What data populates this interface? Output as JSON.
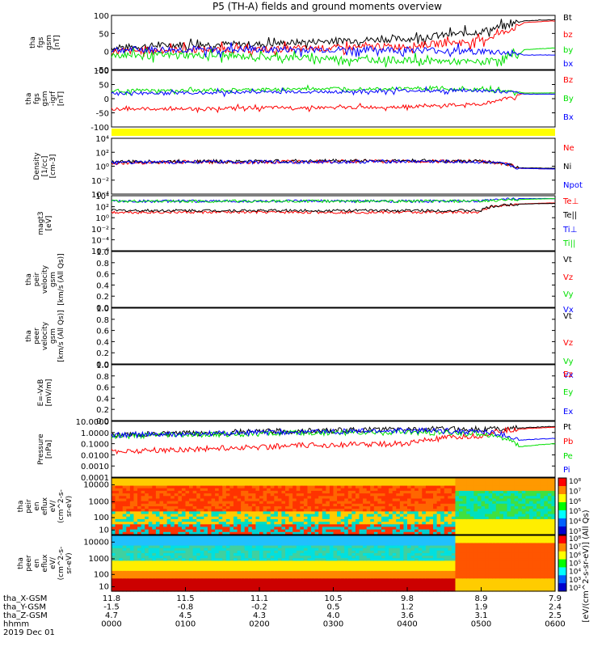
{
  "title": "P5 (TH-A) fields and ground moments overview",
  "colors": {
    "black": "#000000",
    "red": "#ff0000",
    "green": "#00e000",
    "blue": "#0000ff",
    "yellow": "#ffff00"
  },
  "chart_data": [
    {
      "type": "line",
      "panel": "fgs_gsm",
      "ylabel": [
        "tha",
        "fgs",
        "gsm",
        "[nT]"
      ],
      "ylim": [
        -50,
        100
      ],
      "yticks": [
        "100",
        "50",
        "0",
        "-50"
      ],
      "series": [
        {
          "name": "Bt",
          "color": "black",
          "x": [
            0,
            60,
            120,
            180,
            240,
            300,
            330,
            335,
            360
          ],
          "y": [
            10,
            20,
            20,
            30,
            35,
            55,
            80,
            85,
            88
          ]
        },
        {
          "name": "bz",
          "color": "red",
          "x": [
            0,
            60,
            120,
            180,
            240,
            300,
            330,
            335,
            360
          ],
          "y": [
            0,
            5,
            5,
            10,
            15,
            30,
            70,
            80,
            85
          ]
        },
        {
          "name": "by",
          "color": "green",
          "x": [
            0,
            60,
            120,
            180,
            240,
            300,
            330,
            335,
            360
          ],
          "y": [
            -10,
            -10,
            -15,
            -20,
            -25,
            -30,
            -10,
            5,
            10
          ]
        },
        {
          "name": "bx",
          "color": "blue",
          "x": [
            0,
            60,
            120,
            180,
            240,
            300,
            330,
            335,
            360
          ],
          "y": [
            5,
            5,
            5,
            5,
            5,
            0,
            -5,
            -10,
            -10
          ]
        }
      ]
    },
    {
      "type": "line",
      "panel": "fgs_gsm_b0",
      "ylabel": [
        "tha",
        "fgs",
        "gsm",
        "-igrf",
        "[nT]"
      ],
      "ylim": [
        -150,
        100
      ],
      "yticks": [
        "100",
        "50",
        "0",
        "-50",
        "-100"
      ],
      "series": [
        {
          "name": "Bz",
          "color": "red",
          "x": [
            0,
            60,
            120,
            180,
            240,
            300,
            330,
            335,
            360
          ],
          "y": [
            -70,
            -70,
            -65,
            -65,
            -60,
            -50,
            -10,
            0,
            0
          ]
        },
        {
          "name": "By",
          "color": "green",
          "x": [
            0,
            60,
            120,
            180,
            240,
            300,
            330,
            335,
            360
          ],
          "y": [
            10,
            10,
            15,
            20,
            20,
            15,
            5,
            0,
            0
          ]
        },
        {
          "name": "Bx",
          "color": "blue",
          "x": [
            0,
            60,
            120,
            180,
            240,
            300,
            330,
            335,
            360
          ],
          "y": [
            0,
            0,
            5,
            5,
            10,
            10,
            0,
            -5,
            -5
          ]
        }
      ]
    },
    {
      "type": "line",
      "panel": "density",
      "yscale": "log",
      "ylabel": [
        "Density",
        "[1/cc]",
        "[cm-3]"
      ],
      "ylim": [
        0.0001,
        10000
      ],
      "yticks": [
        "10⁴",
        "10²",
        "10⁰",
        "10⁻²",
        "10⁻⁴"
      ],
      "series": [
        {
          "name": "Ne",
          "color": "red",
          "x": [
            0,
            60,
            120,
            180,
            240,
            300,
            330,
            360
          ],
          "y": [
            3,
            4,
            4,
            5,
            5,
            5,
            0.5,
            0.4
          ]
        },
        {
          "name": "Ni",
          "color": "black",
          "x": [
            0,
            60,
            120,
            180,
            240,
            300,
            330,
            360
          ],
          "y": [
            4,
            5,
            5,
            6,
            6,
            5,
            0.6,
            0.5
          ]
        },
        {
          "name": "Npot",
          "color": "blue",
          "x": [
            0,
            60,
            120,
            180,
            240,
            300,
            330,
            360
          ],
          "y": [
            3,
            4,
            4,
            4,
            5,
            4,
            0.5,
            0.4
          ]
        }
      ]
    },
    {
      "type": "line",
      "panel": "temperature",
      "yscale": "log",
      "ylabel": [
        "magt3",
        "[eV]"
      ],
      "ylim": [
        1e-06,
        10000
      ],
      "yticks": [
        "10⁴",
        "10²",
        "10⁰",
        "10⁻²",
        "10⁻⁴",
        "10⁻⁶"
      ],
      "series": [
        {
          "name": "Te⊥",
          "color": "red",
          "x": [
            0,
            60,
            120,
            180,
            240,
            300,
            330,
            360
          ],
          "y": [
            10,
            10,
            10,
            10,
            10,
            10,
            300,
            500
          ]
        },
        {
          "name": "Te||",
          "color": "black",
          "x": [
            0,
            60,
            120,
            180,
            240,
            300,
            330,
            360
          ],
          "y": [
            20,
            20,
            20,
            20,
            20,
            20,
            300,
            400
          ]
        },
        {
          "name": "Ti⊥",
          "color": "blue",
          "x": [
            0,
            60,
            120,
            180,
            240,
            300,
            330,
            360
          ],
          "y": [
            1000,
            1000,
            1000,
            1000,
            1000,
            1000,
            3000,
            3000
          ]
        },
        {
          "name": "Ti||",
          "color": "green",
          "x": [
            0,
            60,
            120,
            180,
            240,
            300,
            330,
            360
          ],
          "y": [
            1000,
            1000,
            1000,
            1000,
            1000,
            1000,
            2000,
            3000
          ]
        }
      ]
    },
    {
      "type": "line",
      "panel": "peir_velocity",
      "ylabel": [
        "tha",
        "peir",
        "velocity",
        "gsm",
        "[km/s (All Qs)]"
      ],
      "ylim": [
        0,
        1
      ],
      "yticks": [
        "1.0",
        "0.8",
        "0.6",
        "0.4",
        "0.2",
        "0.0"
      ],
      "legend": [
        "Vt",
        "Vz",
        "Vy",
        "Vx"
      ]
    },
    {
      "type": "line",
      "panel": "peer_velocity",
      "ylabel": [
        "tha",
        "peer",
        "velocity",
        "gsm",
        "[km/s (All Qs)]"
      ],
      "ylim": [
        0,
        1
      ],
      "yticks": [
        "1.0",
        "0.8",
        "0.6",
        "0.4",
        "0.2",
        "0.0"
      ],
      "legend": [
        "Vt",
        "Vz",
        "Vy",
        "Vx"
      ]
    },
    {
      "type": "line",
      "panel": "e_field",
      "ylabel": [
        "E=-VxB",
        "[mV/m]"
      ],
      "ylim": [
        0,
        1
      ],
      "yticks": [
        "1.0",
        "0.8",
        "0.6",
        "0.4",
        "0.2",
        "0.0"
      ],
      "legend": [
        "Ez",
        "Ey",
        "Ex"
      ]
    },
    {
      "type": "line",
      "panel": "pressure",
      "yscale": "log",
      "ylabel": [
        "Pressure",
        "[nPa]"
      ],
      "ylim": [
        0.0001,
        10
      ],
      "yticks": [
        "10.0000",
        "1.0000",
        "0.1000",
        "0.0100",
        "0.0010",
        "0.0001"
      ],
      "series": [
        {
          "name": "Pt",
          "color": "black",
          "x": [
            0,
            60,
            120,
            180,
            240,
            300,
            330,
            360
          ],
          "y": [
            0.6,
            0.8,
            1.2,
            1.5,
            2,
            2,
            2.5,
            3.5
          ]
        },
        {
          "name": "Pb",
          "color": "red",
          "x": [
            0,
            60,
            120,
            180,
            240,
            300,
            330,
            360
          ],
          "y": [
            0.02,
            0.03,
            0.05,
            0.08,
            0.1,
            0.5,
            2,
            3
          ]
        },
        {
          "name": "Pe",
          "color": "green",
          "x": [
            0,
            60,
            120,
            180,
            240,
            300,
            330,
            360
          ],
          "y": [
            0.5,
            0.6,
            0.8,
            1,
            1,
            0.8,
            0.05,
            0.1
          ]
        },
        {
          "name": "Pi",
          "color": "blue",
          "x": [
            0,
            60,
            120,
            180,
            240,
            300,
            330,
            360
          ],
          "y": [
            0.6,
            0.7,
            1,
            1.2,
            1.5,
            1.2,
            0.2,
            0.3
          ]
        }
      ]
    },
    {
      "type": "heatmap",
      "panel": "peir_en_eflux",
      "ylabel": [
        "tha",
        "peir",
        "en",
        "eflux",
        "eV/",
        "(cm^2-s-",
        "sr-eV)"
      ],
      "yticks": [
        "10000",
        "1000",
        "100",
        "10"
      ],
      "colorbar_ticks": [
        "10⁸",
        "10⁷",
        "10⁶",
        "10⁵",
        "10⁴",
        "10³"
      ]
    },
    {
      "type": "heatmap",
      "panel": "peer_en_eflux",
      "ylabel": [
        "tha",
        "peer",
        "en",
        "eflux",
        "eV/",
        "(cm^2-s-",
        "sr-eV)"
      ],
      "yticks": [
        "10000",
        "1000",
        "100",
        "10"
      ],
      "colorbar_ticks": [
        "10⁸",
        "10⁷",
        "10⁶",
        "10⁵",
        "10⁴",
        "10³",
        "10²"
      ]
    }
  ],
  "colorbar_label": "[eV/(cm^2-s-sr-eV)] (All Qs)",
  "xaxis": {
    "rows": [
      {
        "label": "tha_X-GSM",
        "values": [
          "11.8",
          "11.5",
          "11.1",
          "10.5",
          "9.8",
          "8.9",
          "7.9"
        ]
      },
      {
        "label": "tha_Y-GSM",
        "values": [
          "-1.5",
          "-0.8",
          "-0.2",
          "0.5",
          "1.2",
          "1.9",
          "2.4"
        ]
      },
      {
        "label": "tha_Z-GSM",
        "values": [
          "4.7",
          "4.5",
          "4.3",
          "4.0",
          "3.6",
          "3.1",
          "2.5"
        ]
      },
      {
        "label": "hhmm",
        "values": [
          "0000",
          "0100",
          "0200",
          "0300",
          "0400",
          "0500",
          "0600"
        ]
      }
    ],
    "date": "2019 Dec 01"
  }
}
